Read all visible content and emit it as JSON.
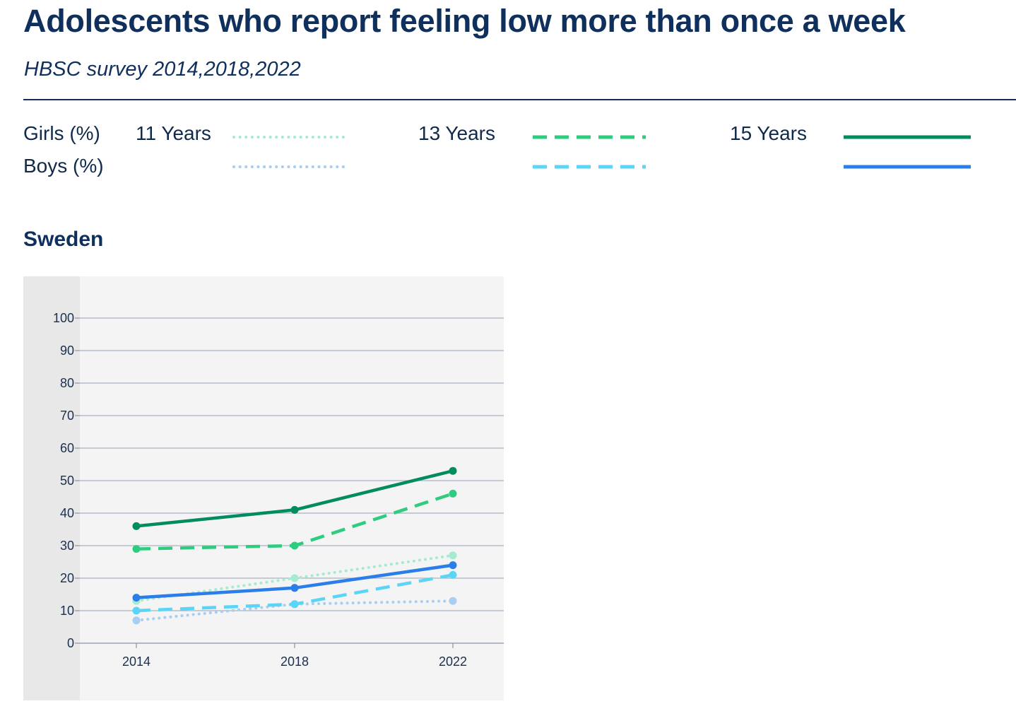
{
  "header": {
    "title": "Adolescents who report feeling low more than once a week",
    "subtitle": "HBSC survey 2014,2018,2022"
  },
  "legend": {
    "row_labels": {
      "girls": "Girls (%)",
      "boys": "Boys (%)"
    },
    "age_labels": {
      "y11": "11 Years",
      "y13": "13 Years",
      "y15": "15 Years"
    },
    "entries": [
      {
        "group": "girls",
        "age": "11 Years",
        "color": "#a6ead0",
        "style": "dotted"
      },
      {
        "group": "girls",
        "age": "13 Years",
        "color": "#2ecc7f",
        "style": "dashed"
      },
      {
        "group": "girls",
        "age": "15 Years",
        "color": "#008c5e",
        "style": "solid"
      },
      {
        "group": "boys",
        "age": "11 Years",
        "color": "#a9cdf3",
        "style": "dotted"
      },
      {
        "group": "boys",
        "age": "13 Years",
        "color": "#5ad5f7",
        "style": "dashed"
      },
      {
        "group": "boys",
        "age": "15 Years",
        "color": "#2b7de9",
        "style": "solid"
      }
    ]
  },
  "section": {
    "country": "Sweden"
  },
  "chart_data": {
    "type": "line",
    "title": "Sweden",
    "categories": [
      "2014",
      "2018",
      "2022"
    ],
    "ylim": [
      0,
      100
    ],
    "yticks": [
      0,
      10,
      20,
      30,
      40,
      50,
      60,
      70,
      80,
      90,
      100
    ],
    "grid": true,
    "series": [
      {
        "name": "Girls 11 Years",
        "values": [
          13,
          20,
          27
        ],
        "color": "#a6ead0",
        "style": "dotted"
      },
      {
        "name": "Boys 11 Years",
        "values": [
          7,
          12,
          13
        ],
        "color": "#a9cdf3",
        "style": "dotted"
      },
      {
        "name": "Boys 13 Years",
        "values": [
          10,
          12,
          21
        ],
        "color": "#5ad5f7",
        "style": "dashed"
      },
      {
        "name": "Boys 15 Years",
        "values": [
          14,
          17,
          24
        ],
        "color": "#2b7de9",
        "style": "solid"
      },
      {
        "name": "Girls 13 Years",
        "values": [
          29,
          30,
          46
        ],
        "color": "#2ecc7f",
        "style": "dashed"
      },
      {
        "name": "Girls 15 Years",
        "values": [
          36,
          41,
          53
        ],
        "color": "#008c5e",
        "style": "solid"
      }
    ]
  }
}
